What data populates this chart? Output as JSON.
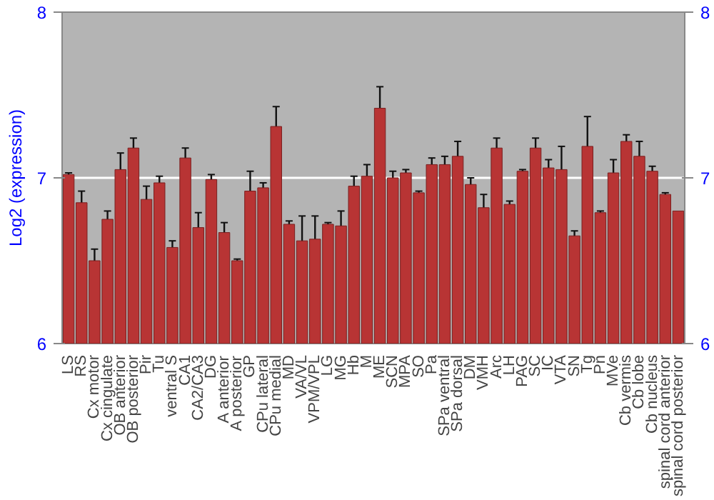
{
  "chart_data": {
    "type": "bar",
    "ylabel": "Log2 (expression)",
    "categories": [
      "LS",
      "RS",
      "Cx motor",
      "Cx cingulate",
      "OB anterior",
      "OB posterior",
      "Pir",
      "Tu",
      "ventral S",
      "CA1",
      "CA2/CA3",
      "DG",
      "A anterior",
      "A posterior",
      "GP",
      "CPu lateral",
      "CPu medial",
      "MD",
      "VA/VL",
      "VPM/VPL",
      "LG",
      "MG",
      "Hb",
      "M",
      "ME",
      "SCN",
      "MPA",
      "SO",
      "Pa",
      "SPa ventral",
      "SPa dorsal",
      "DM",
      "VMH",
      "Arc",
      "LH",
      "PAG",
      "SC",
      "IC",
      "VTA",
      "SN",
      "Tg",
      "Pn",
      "MVe",
      "Cb vermis",
      "Cb lobe",
      "Cb nucleus",
      "spinal cord anterior",
      "spinal cord posterior"
    ],
    "series": [
      {
        "color": "#b83434",
        "values": [
          7.02,
          6.85,
          6.5,
          6.75,
          7.05,
          7.18,
          6.87,
          6.97,
          6.58,
          7.12,
          6.7,
          6.99,
          6.67,
          6.5,
          6.92,
          6.94,
          7.31,
          6.72,
          6.62,
          6.63,
          6.72,
          6.71,
          6.95,
          7.01,
          7.42,
          7.0,
          7.03,
          6.91,
          7.08,
          7.08,
          7.13,
          6.96,
          6.82,
          7.18,
          6.84,
          7.04,
          7.18,
          7.06,
          7.05,
          6.65,
          7.19,
          6.79,
          7.03,
          7.22,
          7.13,
          7.04,
          6.9,
          6.8
        ],
        "errors": [
          0.01,
          0.07,
          0.07,
          0.05,
          0.1,
          0.06,
          0.08,
          0.04,
          0.04,
          0.06,
          0.09,
          0.03,
          0.06,
          0.01,
          0.12,
          0.03,
          0.12,
          0.02,
          0.15,
          0.14,
          0.01,
          0.09,
          0.06,
          0.07,
          0.13,
          0.04,
          0.02,
          0.01,
          0.04,
          0.05,
          0.09,
          0.04,
          0.08,
          0.06,
          0.02,
          0.01,
          0.06,
          0.05,
          0.14,
          0.03,
          0.18,
          0.01,
          0.08,
          0.04,
          0.09,
          0.03,
          0.01,
          null
        ]
      }
    ],
    "ylim": [
      6,
      8
    ],
    "yticks": [
      6,
      7,
      8
    ],
    "y2lim": [
      6,
      8
    ],
    "y2ticks": [
      6,
      7,
      8
    ],
    "grid": "y"
  }
}
